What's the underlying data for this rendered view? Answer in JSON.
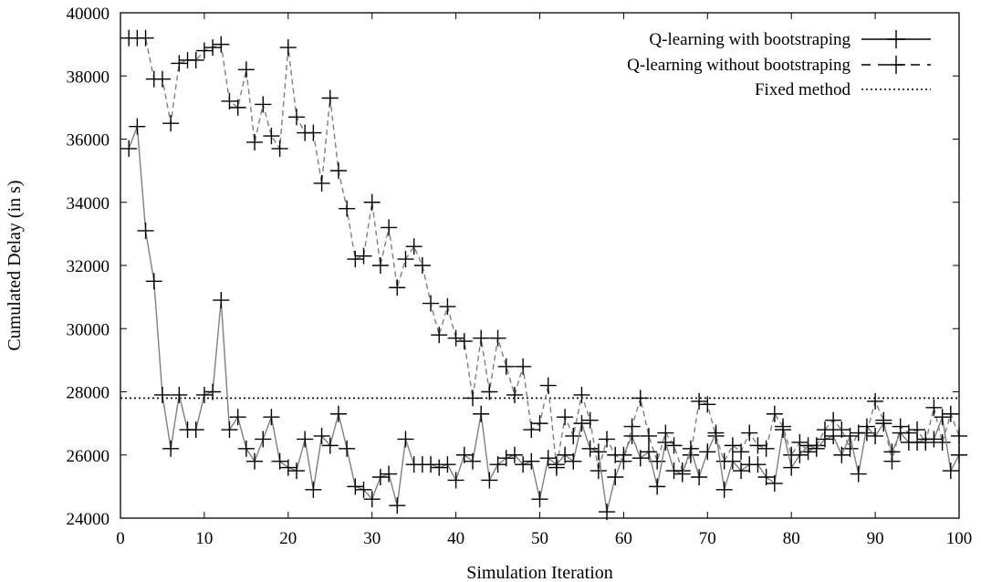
{
  "chart_data": {
    "type": "line",
    "title": "",
    "xlabel": "Simulation Iteration",
    "ylabel": "Cumulated Delay (in s)",
    "xlim": [
      0,
      100
    ],
    "ylim": [
      24000,
      40000
    ],
    "x_ticks": [
      0,
      10,
      20,
      30,
      40,
      50,
      60,
      70,
      80,
      90,
      100
    ],
    "y_ticks": [
      24000,
      26000,
      28000,
      30000,
      32000,
      34000,
      36000,
      38000,
      40000
    ],
    "grid": false,
    "legend_position": "top-right",
    "series": [
      {
        "name": "Q-learning with bootstraping",
        "style": "solid",
        "marker": "plus",
        "color": "#7f7f7f",
        "x": [
          1,
          2,
          3,
          4,
          5,
          6,
          7,
          8,
          9,
          10,
          11,
          12,
          13,
          14,
          15,
          16,
          17,
          18,
          19,
          20,
          21,
          22,
          23,
          24,
          25,
          26,
          27,
          28,
          29,
          30,
          31,
          32,
          33,
          34,
          35,
          36,
          37,
          38,
          39,
          40,
          41,
          42,
          43,
          44,
          45,
          46,
          47,
          48,
          49,
          50,
          51,
          52,
          53,
          54,
          55,
          56,
          57,
          58,
          59,
          60,
          61,
          62,
          63,
          64,
          65,
          66,
          67,
          68,
          69,
          70,
          71,
          72,
          73,
          74,
          75,
          76,
          77,
          78,
          79,
          80,
          81,
          82,
          83,
          84,
          85,
          86,
          87,
          88,
          89,
          90,
          91,
          92,
          93,
          94,
          95,
          96,
          97,
          98,
          99,
          100
        ],
        "y": [
          35700,
          36400,
          33100,
          31500,
          27900,
          26200,
          27900,
          26800,
          26800,
          27900,
          28000,
          30900,
          26800,
          27200,
          26200,
          25800,
          26500,
          27200,
          25800,
          25600,
          25500,
          26500,
          24900,
          26600,
          26300,
          27300,
          26200,
          25000,
          24900,
          24600,
          25300,
          25400,
          24400,
          26500,
          25700,
          25700,
          25700,
          25600,
          25700,
          25200,
          26000,
          25800,
          27300,
          25200,
          25700,
          25900,
          26000,
          25700,
          25800,
          24600,
          25900,
          25700,
          26000,
          25800,
          27000,
          26200,
          26100,
          24200,
          25300,
          26000,
          26600,
          25900,
          26100,
          25000,
          26400,
          25500,
          25400,
          26200,
          25300,
          26100,
          26700,
          24900,
          25800,
          25500,
          25700,
          25700,
          25300,
          25100,
          26800,
          25600,
          26000,
          26300,
          26200,
          26500,
          26600,
          26000,
          26600,
          25400,
          26900,
          26600,
          27000,
          26100,
          26700,
          26400,
          26400,
          26500,
          26500,
          27200,
          25500,
          26000
        ]
      },
      {
        "name": "Q-learning without bootstraping",
        "style": "dashed",
        "marker": "plus",
        "color": "#7f7f7f",
        "x": [
          1,
          2,
          3,
          4,
          5,
          6,
          7,
          8,
          9,
          10,
          11,
          12,
          13,
          14,
          15,
          16,
          17,
          18,
          19,
          20,
          21,
          22,
          23,
          24,
          25,
          26,
          27,
          28,
          29,
          30,
          31,
          32,
          33,
          34,
          35,
          36,
          37,
          38,
          39,
          40,
          41,
          42,
          43,
          44,
          45,
          46,
          47,
          48,
          49,
          50,
          51,
          52,
          53,
          54,
          55,
          56,
          57,
          58,
          59,
          60,
          61,
          62,
          63,
          64,
          65,
          66,
          67,
          68,
          69,
          70,
          71,
          72,
          73,
          74,
          75,
          76,
          77,
          78,
          79,
          80,
          81,
          82,
          83,
          84,
          85,
          86,
          87,
          88,
          89,
          90,
          91,
          92,
          93,
          94,
          95,
          96,
          97,
          98,
          99,
          100
        ],
        "y": [
          39200,
          39200,
          39200,
          37900,
          37900,
          36500,
          38400,
          38500,
          38500,
          38800,
          38900,
          39000,
          37200,
          37000,
          38200,
          35900,
          37100,
          36100,
          35700,
          38900,
          36700,
          36200,
          36200,
          34600,
          37300,
          35000,
          33800,
          32200,
          32300,
          34000,
          32000,
          33200,
          31300,
          32200,
          32600,
          32000,
          30800,
          29800,
          30700,
          29700,
          29600,
          27800,
          29700,
          28000,
          29700,
          28800,
          27900,
          28800,
          26800,
          27000,
          28200,
          25600,
          27200,
          26600,
          27900,
          27100,
          25500,
          26500,
          26000,
          25800,
          26900,
          27800,
          26600,
          25800,
          26700,
          26300,
          25500,
          26000,
          27700,
          27600,
          26600,
          25800,
          26300,
          26100,
          26700,
          26300,
          26200,
          27300,
          26900,
          26000,
          26400,
          26100,
          26300,
          26800,
          27100,
          26800,
          26200,
          26700,
          26700,
          27700,
          27100,
          25800,
          26900,
          26700,
          26800,
          26400,
          27500,
          26400,
          27300,
          26600
        ]
      },
      {
        "name": "Fixed method",
        "style": "dotted",
        "marker": "none",
        "color": "#000000",
        "x": [
          0,
          100
        ],
        "y": [
          27800,
          27800
        ]
      }
    ]
  }
}
